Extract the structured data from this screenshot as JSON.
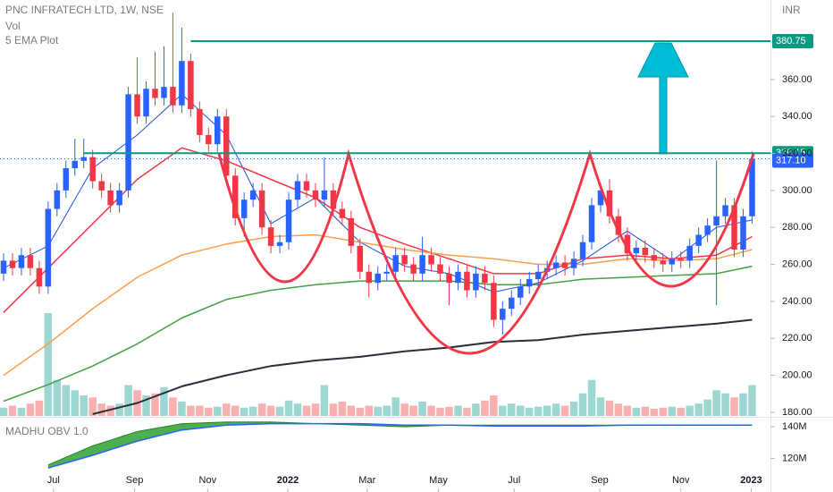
{
  "chart_data": {
    "type": "candlestick",
    "title": "PNC INFRATECH LTD, 1W, NSE",
    "legend": [
      "Vol",
      "5 EMA Plot"
    ],
    "currency": "INR",
    "up_color": "#2962ff",
    "down_color": "#f23645",
    "open": [
      255,
      262,
      258,
      265,
      258,
      248,
      290,
      300,
      312,
      316,
      318,
      305,
      300,
      292,
      300,
      352,
      340,
      355,
      350,
      356,
      346,
      370,
      344,
      330,
      325,
      340,
      308,
      285,
      295,
      300,
      280,
      270,
      272,
      295,
      305,
      300,
      295,
      300,
      290,
      285,
      270,
      256,
      250,
      255,
      256,
      265,
      260,
      255,
      265,
      260,
      255,
      250,
      256,
      246,
      255,
      250,
      230,
      236,
      242,
      248,
      252,
      256,
      258,
      261,
      258,
      263,
      272,
      292,
      300,
      286,
      276,
      266,
      269,
      265,
      262,
      260,
      263,
      262,
      270,
      276,
      281,
      286,
      292,
      268,
      286
    ],
    "high": [
      266,
      266,
      269,
      269,
      262,
      294,
      304,
      316,
      328,
      328,
      322,
      309,
      304,
      304,
      356,
      372,
      359,
      375,
      378,
      396,
      388,
      374,
      348,
      334,
      344,
      344,
      312,
      299,
      304,
      304,
      284,
      276,
      299,
      309,
      309,
      304,
      318,
      304,
      294,
      289,
      274,
      260,
      259,
      260,
      269,
      269,
      264,
      275,
      269,
      264,
      259,
      260,
      260,
      259,
      259,
      254,
      240,
      246,
      252,
      256,
      260,
      262,
      265,
      265,
      267,
      276,
      296,
      304,
      306,
      290,
      280,
      273,
      273,
      269,
      266,
      267,
      267,
      274,
      280,
      285,
      316,
      296,
      296,
      290,
      321
    ],
    "low": [
      251,
      254,
      254,
      254,
      244,
      244,
      286,
      296,
      308,
      312,
      301,
      296,
      288,
      288,
      296,
      336,
      336,
      346,
      346,
      342,
      342,
      340,
      326,
      321,
      321,
      304,
      281,
      275,
      291,
      276,
      266,
      266,
      268,
      291,
      296,
      291,
      291,
      286,
      281,
      266,
      252,
      242,
      246,
      251,
      252,
      256,
      251,
      251,
      256,
      251,
      238,
      246,
      242,
      242,
      246,
      226,
      222,
      232,
      238,
      244,
      248,
      252,
      254,
      254,
      254,
      259,
      268,
      288,
      282,
      272,
      262,
      262,
      261,
      258,
      256,
      256,
      258,
      258,
      266,
      272,
      238,
      282,
      264,
      264,
      282
    ],
    "close": [
      262,
      258,
      265,
      258,
      248,
      290,
      300,
      312,
      316,
      318,
      305,
      300,
      292,
      300,
      352,
      340,
      355,
      350,
      356,
      346,
      370,
      344,
      330,
      325,
      340,
      308,
      285,
      295,
      300,
      280,
      270,
      272,
      295,
      305,
      300,
      295,
      300,
      290,
      285,
      270,
      256,
      250,
      255,
      256,
      265,
      260,
      255,
      265,
      260,
      255,
      250,
      256,
      246,
      255,
      250,
      230,
      236,
      242,
      248,
      252,
      256,
      258,
      261,
      258,
      263,
      272,
      292,
      300,
      286,
      276,
      266,
      269,
      265,
      262,
      260,
      263,
      262,
      270,
      276,
      281,
      286,
      292,
      268,
      286,
      317.1
    ],
    "volume": [
      8,
      10,
      8,
      12,
      15,
      100,
      35,
      30,
      25,
      20,
      18,
      12,
      10,
      12,
      30,
      25,
      20,
      22,
      28,
      18,
      14,
      10,
      10,
      8,
      9,
      12,
      10,
      8,
      9,
      12,
      10,
      9,
      15,
      12,
      10,
      12,
      30,
      12,
      14,
      10,
      8,
      10,
      9,
      10,
      18,
      12,
      10,
      14,
      10,
      8,
      9,
      10,
      8,
      12,
      15,
      20,
      10,
      12,
      10,
      8,
      9,
      10,
      12,
      10,
      14,
      22,
      35,
      18,
      15,
      12,
      10,
      8,
      9,
      7,
      8,
      9,
      8,
      10,
      12,
      16,
      25,
      22,
      18,
      22,
      30
    ],
    "vlim": [
      0,
      100
    ],
    "ma_x": [
      0,
      5,
      10,
      15,
      20,
      25,
      30,
      35,
      40,
      45,
      50,
      55,
      60,
      65,
      70,
      75,
      80,
      84
    ],
    "ma_series": [
      {
        "color": "#1e53e5",
        "width": 1,
        "values": [
          258,
          270,
          312,
          330,
          352,
          330,
          282,
          296,
          272,
          259,
          255,
          245,
          250,
          262,
          278,
          262,
          280,
          284
        ]
      },
      {
        "color": "#f23645",
        "width": 1.5,
        "values": [
          234,
          258,
          282,
          306,
          323,
          316,
          306,
          296,
          280,
          271,
          263,
          255,
          255,
          263,
          265,
          263,
          265,
          275
        ]
      },
      {
        "color": "#ff9e4a",
        "width": 1.5,
        "values": [
          200,
          217,
          236,
          253,
          265,
          271,
          275,
          276,
          272,
          268,
          265,
          263,
          260,
          260,
          263,
          262,
          263,
          268
        ]
      },
      {
        "color": "#43a047",
        "width": 1.5,
        "values": [
          186,
          195,
          205,
          217,
          231,
          241,
          246,
          249,
          251,
          251,
          251,
          249,
          249,
          252,
          253,
          254,
          255,
          259
        ]
      },
      {
        "color": "#2a2e39",
        "width": 2,
        "values": [
          null,
          null,
          179,
          185,
          194,
          200,
          205,
          208,
          210,
          213,
          215,
          218,
          219,
          222,
          224,
          226,
          228,
          230
        ]
      }
    ],
    "levels": [
      {
        "value": 380.75,
        "label": "380.75",
        "color": "#089981",
        "start": 21
      },
      {
        "value": 320.15,
        "label": "320.15",
        "color": "#089981",
        "start": 9
      }
    ],
    "last_price": {
      "value": 317.1,
      "label": "317.10",
      "color": "#2962ff"
    },
    "ylim": [
      178,
      403
    ],
    "yticks": [
      {
        "value": 180,
        "label": "180.00"
      },
      {
        "value": 200,
        "label": "200.00"
      },
      {
        "value": 220,
        "label": "220.00"
      },
      {
        "value": 240,
        "label": "240.00"
      },
      {
        "value": 260,
        "label": "260.00"
      },
      {
        "value": 280,
        "label": "280.00"
      },
      {
        "value": 300,
        "label": "300.00"
      },
      {
        "value": 320,
        "label": "320.00"
      },
      {
        "value": 340,
        "label": "340.00"
      },
      {
        "value": 360,
        "label": "360.00"
      }
    ],
    "xticks": [
      {
        "value": 5.6,
        "label": "Jul"
      },
      {
        "value": 14.7,
        "label": "Sep"
      },
      {
        "value": 22.9,
        "label": "Nov"
      },
      {
        "value": 31.9,
        "label": "2022"
      },
      {
        "value": 40.8,
        "label": "Mar"
      },
      {
        "value": 48.8,
        "label": "May"
      },
      {
        "value": 57.3,
        "label": "Jul"
      },
      {
        "value": 66.9,
        "label": "Sep"
      },
      {
        "value": 76,
        "label": "Nov"
      },
      {
        "value": 83.9,
        "label": "2023"
      }
    ],
    "obv": {
      "title": "MADHU OBV 1.0",
      "fast": [
        null,
        116,
        128,
        137,
        142,
        143,
        143,
        142,
        141,
        140,
        141,
        141,
        141,
        141,
        141,
        141,
        141,
        141
      ],
      "slow": [
        null,
        114,
        122,
        131,
        138,
        141,
        142,
        142,
        142,
        141,
        141,
        140.5,
        140.5,
        140.5,
        141,
        141,
        141,
        141
      ],
      "y2lim": [
        98.9,
        145.7
      ],
      "y2ticks": [
        {
          "value": 140,
          "label": "140M"
        },
        {
          "value": 120,
          "label": "120M"
        }
      ]
    }
  }
}
